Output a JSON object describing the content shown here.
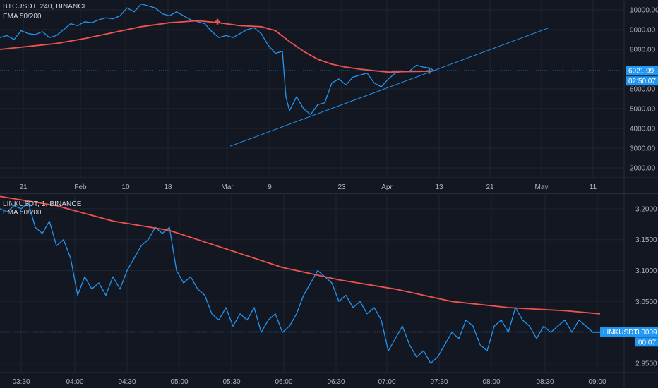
{
  "colors": {
    "background": "#131722",
    "grid": "#1f2430",
    "price_line": "#2196f3",
    "ema_line": "#ef5350",
    "axis_text": "#b2b5be",
    "badge": "#2196f3"
  },
  "top_panel": {
    "symbol_label": "BTCUSDT, 240, BINANCE",
    "indicator_label": "EMA 50/200",
    "price_badge": "6921.99",
    "timer_badge": "02:50:07",
    "y_ticks": [
      "10000.00",
      "9000.00",
      "8000.00",
      "6000.00",
      "5000.00",
      "4000.00",
      "3000.00",
      "2000.00"
    ],
    "x_ticks": [
      "21",
      "Feb",
      "10",
      "18",
      "Mar",
      "9",
      "23",
      "Apr",
      "13",
      "21",
      "May",
      "11"
    ]
  },
  "bottom_panel": {
    "symbol_label": "LINKUSDT, 1, BINANCE",
    "indicator_label": "EMA 50/200",
    "price_badge_symbol": "LINKUSDT",
    "price_badge": "3.0009",
    "timer_badge": "00:07",
    "y_ticks": [
      "3.2000",
      "3.1500",
      "3.1000",
      "3.0500",
      "2.9500"
    ],
    "x_ticks": [
      "03:30",
      "04:00",
      "04:30",
      "05:00",
      "05:30",
      "06:00",
      "06:30",
      "07:00",
      "07:30",
      "08:00",
      "08:30",
      "09:00"
    ]
  },
  "chart_data": [
    {
      "type": "line",
      "title": "BTCUSDT, 240, BINANCE",
      "ylim": [
        1500,
        10500
      ],
      "x_ticks": [
        "21",
        "Feb",
        "10",
        "18",
        "Mar",
        "9",
        "23",
        "Apr",
        "13",
        "21",
        "May",
        "11"
      ],
      "series": [
        {
          "name": "BTCUSDT",
          "x": [
            0,
            10,
            20,
            30,
            40,
            50,
            60,
            70,
            80,
            90,
            100,
            110,
            120,
            130,
            140,
            150,
            160,
            170,
            180,
            190,
            200,
            210,
            220,
            230,
            240,
            250,
            260,
            270,
            280,
            290,
            300,
            310,
            320,
            330,
            340,
            350,
            360,
            370,
            380,
            390,
            400,
            405,
            410,
            420,
            430,
            440,
            450,
            460,
            470,
            480,
            490,
            500,
            510,
            520,
            530,
            540,
            550,
            560,
            570,
            580,
            590,
            600,
            610,
            615
          ],
          "values": [
            8600,
            8700,
            8500,
            8950,
            8800,
            8750,
            8900,
            8600,
            8700,
            9000,
            9300,
            9200,
            9400,
            9350,
            9500,
            9600,
            9550,
            9700,
            10100,
            9900,
            10300,
            10200,
            10100,
            9800,
            9700,
            9900,
            9700,
            9500,
            9400,
            9300,
            8900,
            8600,
            8700,
            8600,
            8800,
            9000,
            9100,
            8800,
            8200,
            7800,
            7900,
            5600,
            4900,
            5600,
            5000,
            4700,
            5200,
            5300,
            6300,
            6500,
            6200,
            6600,
            6700,
            6800,
            6300,
            6100,
            6500,
            6800,
            6900,
            6900,
            7200,
            7100,
            7050,
            6900
          ]
        },
        {
          "name": "EMA",
          "x": [
            0,
            40,
            80,
            120,
            160,
            200,
            240,
            280,
            310,
            340,
            370,
            390,
            410,
            430,
            450,
            470,
            490,
            510,
            530,
            550,
            570,
            590,
            610,
            615
          ],
          "values": [
            8000,
            8150,
            8300,
            8550,
            8850,
            9150,
            9350,
            9450,
            9350,
            9200,
            9150,
            8950,
            8400,
            7900,
            7500,
            7250,
            7100,
            7000,
            6920,
            6850,
            6870,
            6880,
            6900,
            6920
          ]
        },
        {
          "name": "Trendline",
          "x": [
            326,
            778
          ],
          "values": [
            3100,
            9100
          ]
        }
      ]
    },
    {
      "type": "line",
      "title": "LINKUSDT, 1, BINANCE",
      "ylim": [
        2.935,
        3.225
      ],
      "x_ticks": [
        "03:30",
        "04:00",
        "04:30",
        "05:00",
        "05:30",
        "06:00",
        "06:30",
        "07:00",
        "07:30",
        "08:00",
        "08:30",
        "09:00"
      ],
      "series": [
        {
          "name": "LINKUSDT",
          "x": [
            0,
            10,
            20,
            30,
            40,
            50,
            60,
            70,
            80,
            90,
            100,
            110,
            120,
            130,
            140,
            150,
            160,
            170,
            180,
            190,
            200,
            210,
            220,
            230,
            240,
            250,
            260,
            270,
            280,
            290,
            300,
            310,
            320,
            330,
            340,
            350,
            360,
            370,
            380,
            390,
            400,
            410,
            420,
            430,
            440,
            450,
            460,
            470,
            480,
            490,
            500,
            510,
            520,
            530,
            540,
            550,
            560,
            570,
            580,
            590,
            600,
            610,
            620,
            630,
            640,
            650,
            660,
            670,
            680,
            690,
            700,
            710,
            720,
            730,
            740,
            750,
            760,
            770,
            780,
            790,
            800,
            810,
            820,
            830,
            840,
            850
          ],
          "values": [
            3.2,
            3.195,
            3.205,
            3.2,
            3.21,
            3.17,
            3.16,
            3.18,
            3.14,
            3.15,
            3.12,
            3.06,
            3.09,
            3.07,
            3.08,
            3.06,
            3.09,
            3.07,
            3.1,
            3.12,
            3.14,
            3.15,
            3.17,
            3.16,
            3.17,
            3.1,
            3.08,
            3.09,
            3.07,
            3.06,
            3.03,
            3.02,
            3.04,
            3.01,
            3.03,
            3.02,
            3.04,
            3.0,
            3.02,
            3.03,
            3.0,
            3.01,
            3.03,
            3.06,
            3.08,
            3.1,
            3.09,
            3.08,
            3.05,
            3.06,
            3.04,
            3.05,
            3.03,
            3.04,
            3.02,
            2.97,
            2.99,
            3.01,
            2.98,
            2.96,
            2.97,
            2.95,
            2.96,
            2.98,
            3.0,
            2.99,
            3.02,
            3.01,
            2.98,
            2.97,
            3.01,
            3.02,
            3.0,
            3.04,
            3.02,
            3.01,
            2.99,
            3.01,
            3.0,
            3.01,
            3.02,
            3.0,
            3.02,
            3.01,
            3.0,
            3.0
          ]
        },
        {
          "name": "EMA",
          "x": [
            0,
            80,
            160,
            240,
            320,
            400,
            480,
            560,
            640,
            720,
            800,
            850
          ],
          "values": [
            3.22,
            3.205,
            3.18,
            3.165,
            3.135,
            3.105,
            3.085,
            3.07,
            3.05,
            3.04,
            3.035,
            3.03
          ]
        }
      ]
    }
  ]
}
